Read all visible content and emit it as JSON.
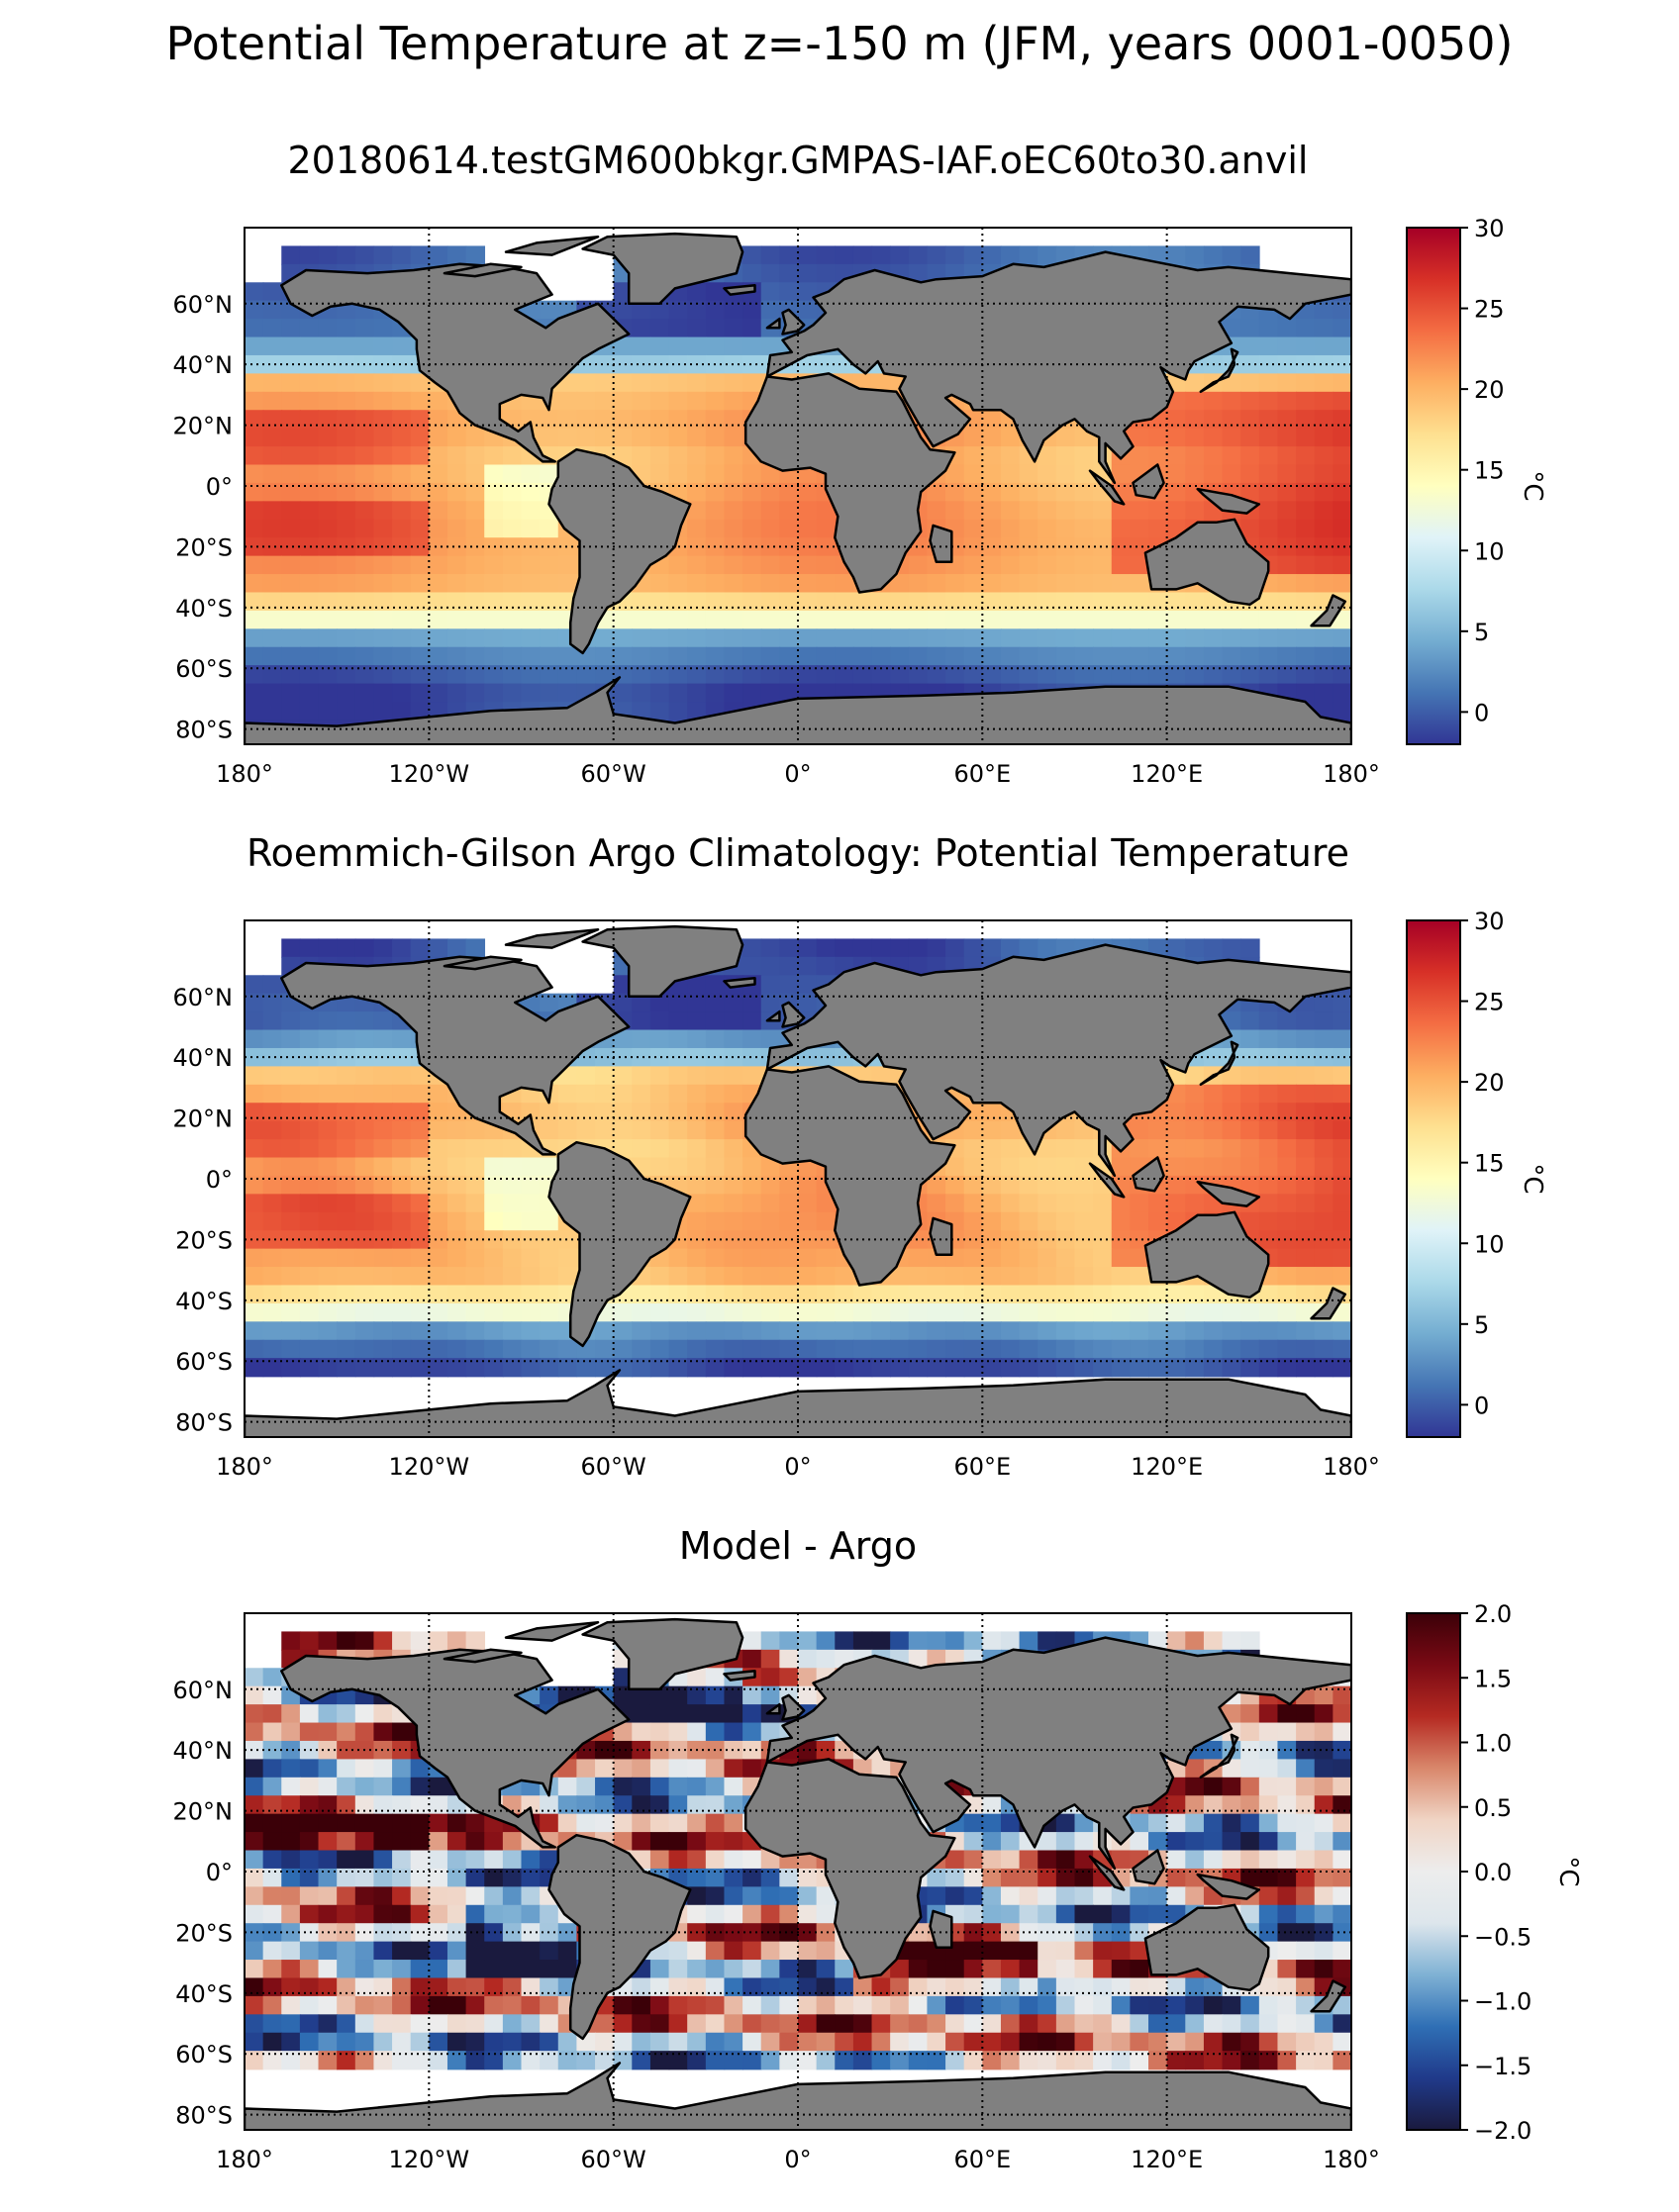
{
  "suptitle": "Potential Temperature at z=-150 m (JFM, years 0001-0050)",
  "colors": {
    "land": "#808080",
    "grid": "#000000",
    "nodata": "#ffffff",
    "temp_cmap": [
      "#313695",
      "#4575b4",
      "#74add1",
      "#abd9e9",
      "#e0f3f8",
      "#ffffbf",
      "#fee090",
      "#fdae61",
      "#f46d43",
      "#d73027",
      "#a50026"
    ],
    "diff_cmap": [
      "#1a1a3e",
      "#203a8a",
      "#2f6fb5",
      "#7fb1d4",
      "#dde6ec",
      "#ededed",
      "#f0d4c4",
      "#d9876b",
      "#b52a22",
      "#7a0a14",
      "#3b0008"
    ]
  },
  "chart_data": [
    {
      "type": "heatmap",
      "title": "20180614.testGM600bkgr.GMPAS-IAF.oEC60to30.anvil",
      "x_ticklabels": [
        "180°",
        "120°W",
        "60°W",
        "0°",
        "60°E",
        "120°E",
        "180°"
      ],
      "x_ticks": [
        -180,
        -120,
        -60,
        0,
        60,
        120,
        180
      ],
      "y_ticklabels": [
        "60°N",
        "40°N",
        "20°N",
        "0°",
        "20°S",
        "40°S",
        "60°S",
        "80°S"
      ],
      "y_ticks": [
        60,
        40,
        20,
        0,
        -20,
        -40,
        -60,
        -80
      ],
      "xlim": [
        -180,
        180
      ],
      "ylim": [
        -85,
        85
      ],
      "colorbar": {
        "label": "°C",
        "range": [
          -2,
          30
        ],
        "ticks": [
          0,
          5,
          10,
          15,
          20,
          25,
          30
        ],
        "ticklabels": [
          "0",
          "5",
          "10",
          "15",
          "20",
          "25",
          "30"
        ]
      }
    },
    {
      "type": "heatmap",
      "title": "Roemmich-Gilson Argo Climatology: Potential Temperature",
      "x_ticklabels": [
        "180°",
        "120°W",
        "60°W",
        "0°",
        "60°E",
        "120°E",
        "180°"
      ],
      "x_ticks": [
        -180,
        -120,
        -60,
        0,
        60,
        120,
        180
      ],
      "y_ticklabels": [
        "60°N",
        "40°N",
        "20°N",
        "0°",
        "20°S",
        "40°S",
        "60°S",
        "80°S"
      ],
      "y_ticks": [
        60,
        40,
        20,
        0,
        -20,
        -40,
        -60,
        -80
      ],
      "xlim": [
        -180,
        180
      ],
      "ylim": [
        -85,
        85
      ],
      "colorbar": {
        "label": "°C",
        "range": [
          -2,
          30
        ],
        "ticks": [
          0,
          5,
          10,
          15,
          20,
          25,
          30
        ],
        "ticklabels": [
          "0",
          "5",
          "10",
          "15",
          "20",
          "25",
          "30"
        ]
      }
    },
    {
      "type": "heatmap",
      "title": "Model - Argo",
      "x_ticklabels": [
        "180°",
        "120°W",
        "60°W",
        "0°",
        "60°E",
        "120°E",
        "180°"
      ],
      "x_ticks": [
        -180,
        -120,
        -60,
        0,
        60,
        120,
        180
      ],
      "y_ticklabels": [
        "60°N",
        "40°N",
        "20°N",
        "0°",
        "20°S",
        "40°S",
        "60°S",
        "80°S"
      ],
      "y_ticks": [
        60,
        40,
        20,
        0,
        -20,
        -40,
        -60,
        -80
      ],
      "xlim": [
        -180,
        180
      ],
      "ylim": [
        -85,
        85
      ],
      "colorbar": {
        "label": "°C",
        "range": [
          -2.0,
          2.0
        ],
        "ticks": [
          2.0,
          1.5,
          1.0,
          0.5,
          0.0,
          -0.5,
          -1.0,
          -1.5,
          -2.0
        ],
        "ticklabels": [
          "2.0",
          "1.5",
          "1.0",
          "0.5",
          "0.0",
          "−0.5",
          "−1.0",
          "−1.5",
          "−2.0"
        ]
      }
    }
  ]
}
